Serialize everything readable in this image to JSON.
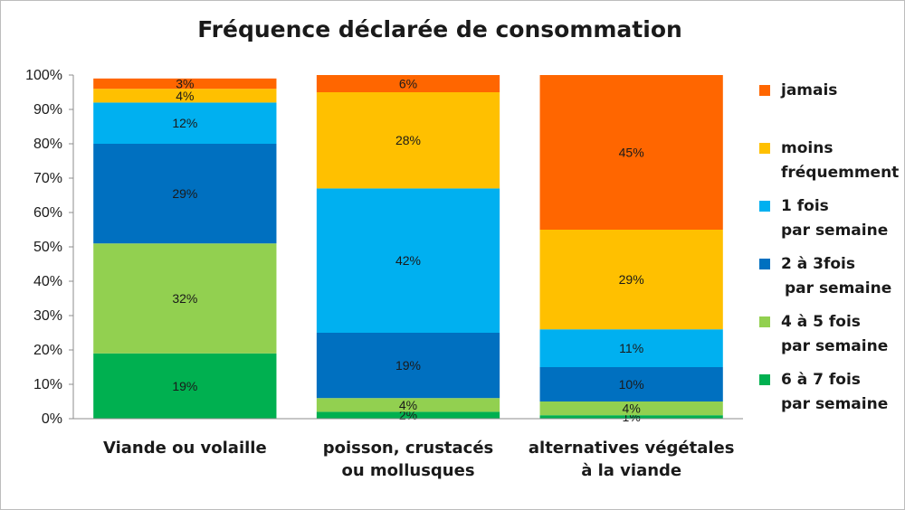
{
  "chart_data": {
    "type": "bar",
    "stacked": true,
    "title": "Fréquence déclarée de consommation",
    "xlabel": "",
    "ylabel": "",
    "ylim": [
      0,
      100
    ],
    "y_ticks": [
      "0%",
      "10%",
      "20%",
      "30%",
      "40%",
      "50%",
      "60%",
      "70%",
      "80%",
      "90%",
      "100%"
    ],
    "grid": false,
    "legend_position": "right",
    "categories": [
      [
        "Viande ou volaille"
      ],
      [
        "poisson, crustacés",
        "ou mollusques"
      ],
      [
        "alternatives végétales",
        "à la viande"
      ]
    ],
    "series": [
      {
        "name": [
          "6 à 7 fois",
          "par semaine"
        ],
        "color": "#00b050",
        "values": [
          19,
          2,
          1
        ],
        "labels": [
          "19%",
          "2%",
          "1%"
        ]
      },
      {
        "name": [
          "4 à 5 fois",
          "par semaine"
        ],
        "color": "#92d050",
        "values": [
          32,
          4,
          4
        ],
        "labels": [
          "32%",
          "4%",
          "4%"
        ]
      },
      {
        "name": [
          "2 à 3fois",
          "par semaine"
        ],
        "color": "#0070c0",
        "values": [
          29,
          19,
          10
        ],
        "labels": [
          "29%",
          "19%",
          "10%"
        ]
      },
      {
        "name": [
          "1 fois",
          "par semaine"
        ],
        "color": "#00b0f0",
        "values": [
          12,
          42,
          11
        ],
        "labels": [
          "12%",
          "42%",
          "11%"
        ]
      },
      {
        "name": [
          "moins",
          "fréquemment"
        ],
        "color": "#ffc000",
        "values": [
          4,
          28,
          29
        ],
        "labels": [
          "4%",
          "28%",
          "29%"
        ]
      },
      {
        "name": [
          "jamais"
        ],
        "color": "#ff6600",
        "values": [
          3,
          6,
          45
        ],
        "labels": [
          "3%",
          "6%",
          "45%"
        ]
      }
    ]
  }
}
